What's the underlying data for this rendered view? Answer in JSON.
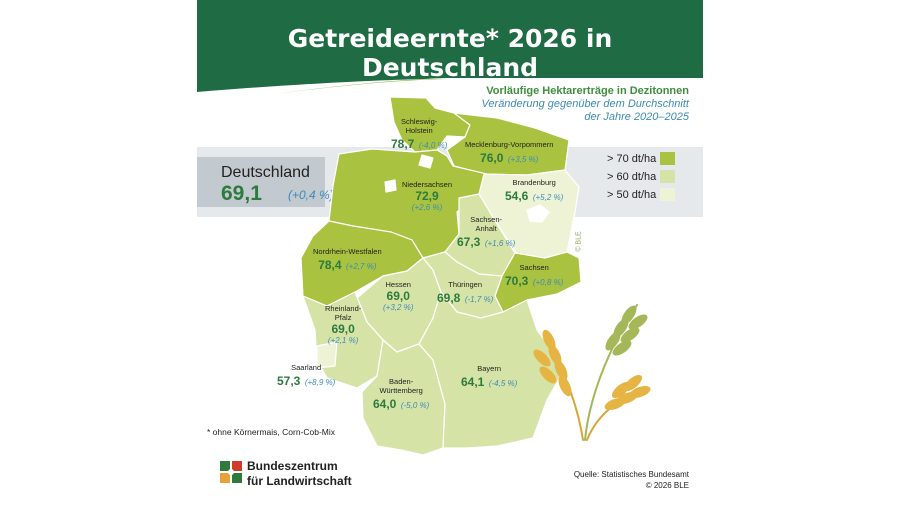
{
  "title": "Getreideernte* 2026 in Deutschland",
  "subtitle": {
    "line1": "Vorläufige Hektarerträge in Dezitonnen",
    "line2": "Veränderung gegenüber dem Durchschnitt",
    "line3": "der Jahre 2020–2025"
  },
  "national": {
    "label": "Deutschland",
    "value": "69,1",
    "change": "(+0,4 %)"
  },
  "legend": [
    {
      "label": "> 70 dt/ha",
      "color": "#a9c23f"
    },
    {
      "label": "> 60 dt/ha",
      "color": "#d6e3a6"
    },
    {
      "label": "> 50 dt/ha",
      "color": "#eef3d6"
    }
  ],
  "states": {
    "sh": {
      "name1": "Schleswig-",
      "name2": "Holstein",
      "value": "78,7",
      "change": "(-4,0 %)"
    },
    "mv": {
      "name1": "Mecklenburg-Vorpommern",
      "value": "76,0",
      "change": "(+3,5 %)"
    },
    "ni": {
      "name1": "Niedersachsen",
      "value": "72,9",
      "change": "(+2,6 %)"
    },
    "bb": {
      "name1": "Brandenburg",
      "value": "54,6",
      "change": "(+5,2 %)"
    },
    "st": {
      "name1": "Sachsen-",
      "name2": "Anhalt",
      "value": "67,3",
      "change": "(+1,6 %)"
    },
    "nw": {
      "name1": "Nordrhein-Westfalen",
      "value": "78,4",
      "change": "(+2,7 %)"
    },
    "sn": {
      "name1": "Sachsen",
      "value": "70,3",
      "change": "(+0,8 %)"
    },
    "he": {
      "name1": "Hessen",
      "value": "69,0",
      "change": "(+3,2 %)"
    },
    "th": {
      "name1": "Thüringen",
      "value": "69,8",
      "change": "(-1,7 %)"
    },
    "rp": {
      "name1": "Rheinland-",
      "name2": "Pfalz",
      "value": "69,0",
      "change": "(+2,1 %)"
    },
    "sl": {
      "name1": "Saarland",
      "value": "57,3",
      "change": "(+8,9 %)"
    },
    "bw": {
      "name1": "Baden-",
      "name2": "Württemberg",
      "value": "64,0",
      "change": "(-5,0 %)"
    },
    "by": {
      "name1": "Bayern",
      "value": "64,1",
      "change": "(-4,5 %)"
    }
  },
  "watermark": "© BLE",
  "footnote": "*  ohne Körnermais, Corn-Cob-Mix",
  "logo": {
    "line1": "Bundeszentrum",
    "line2": "für Landwirtschaft"
  },
  "source": {
    "line1": "Quelle: Statistisches Bundesamt",
    "line2": "© 2026 BLE"
  }
}
